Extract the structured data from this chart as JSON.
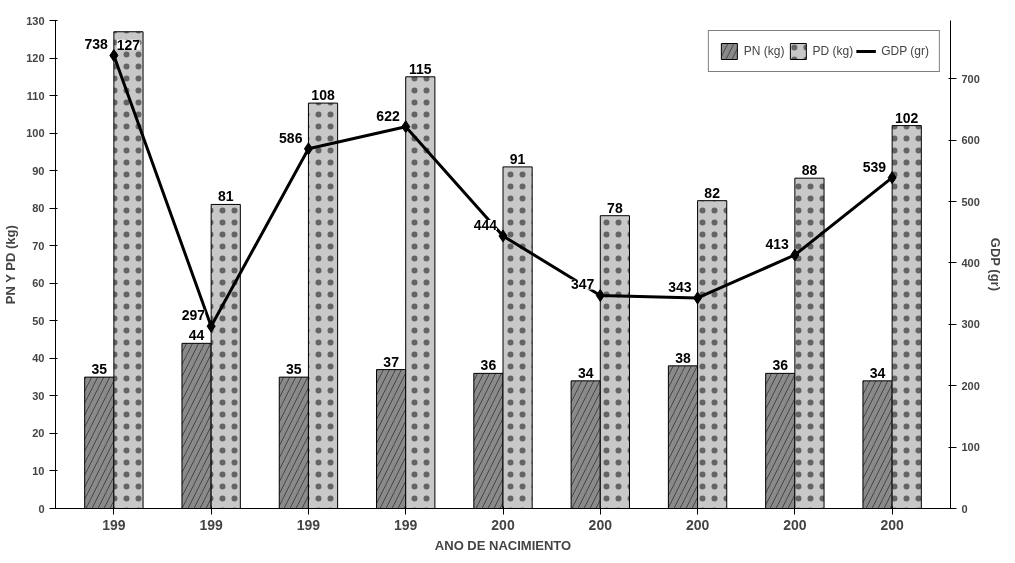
{
  "chart_data": {
    "type": "bar",
    "xlabel": "ANO DE NACIMIENTO",
    "ylabel": "PN Y PD (kg)",
    "y2label": "GDP (gr)",
    "categories": [
      "199",
      "199",
      "199",
      "199",
      "200",
      "200",
      "200",
      "200",
      "200"
    ],
    "series": [
      {
        "name": "PN (kg)",
        "color": "#8a8a8a",
        "values": [
          35,
          44,
          35,
          37,
          36,
          34,
          38,
          36,
          34
        ]
      },
      {
        "name": "PD (kg)",
        "color": "#c8c8c8",
        "values": [
          127,
          81,
          108,
          115,
          91,
          78,
          82,
          88,
          102
        ]
      },
      {
        "name": "GDP (gr)",
        "type": "line",
        "axis": "y2",
        "color": "#000000",
        "marker": "diamond",
        "values": [
          738,
          297,
          586,
          622,
          444,
          347,
          343,
          413,
          539
        ]
      }
    ],
    "ylim": [
      0,
      130
    ],
    "yticks": [
      0,
      10,
      20,
      30,
      40,
      50,
      60,
      70,
      80,
      90,
      100,
      110,
      120,
      130
    ],
    "y2lim": [
      0,
      795
    ],
    "y2ticks": [
      0,
      100,
      200,
      300,
      400,
      500,
      600,
      700
    ],
    "data_labels": true,
    "legend": "top right",
    "grid": false
  }
}
